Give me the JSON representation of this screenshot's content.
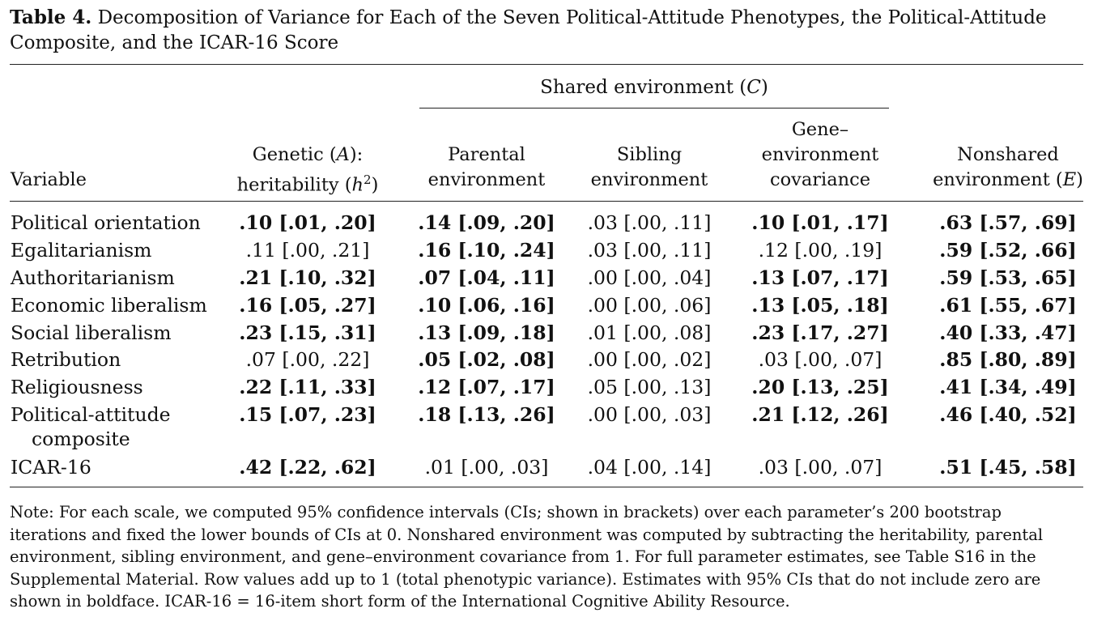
{
  "caption": {
    "label": "Table 4.",
    "text": "Decomposition of Variance for Each of the Seven Political-Attitude Phenotypes, the Political-Attitude Composite, and the ICAR-16 Score"
  },
  "header": {
    "spanner": "Shared environment (C)",
    "variable": "Variable",
    "genetic": [
      "Genetic (A):",
      "heritability (h²)"
    ],
    "parental": [
      "Parental",
      "environment"
    ],
    "sibling": [
      "Sibling",
      "environment"
    ],
    "covariance": [
      "Gene–",
      "environment",
      "covariance"
    ],
    "nonshared": [
      "Nonshared",
      "environment (E)"
    ]
  },
  "rows": [
    {
      "variable": [
        "Political orientation"
      ],
      "cells": [
        {
          "v": ".10 [.01, .20]",
          "bold": true
        },
        {
          "v": ".14 [.09, .20]",
          "bold": true
        },
        {
          "v": ".03 [.00, .11]",
          "bold": false
        },
        {
          "v": ".10 [.01, .17]",
          "bold": true
        },
        {
          "v": ".63 [.57, .69]",
          "bold": true
        }
      ]
    },
    {
      "variable": [
        "Egalitarianism"
      ],
      "cells": [
        {
          "v": ".11 [.00, .21]",
          "bold": false
        },
        {
          "v": ".16 [.10, .24]",
          "bold": true
        },
        {
          "v": ".03 [.00, .11]",
          "bold": false
        },
        {
          "v": ".12 [.00, .19]",
          "bold": false
        },
        {
          "v": ".59 [.52, .66]",
          "bold": true
        }
      ]
    },
    {
      "variable": [
        "Authoritarianism"
      ],
      "cells": [
        {
          "v": ".21 [.10, .32]",
          "bold": true
        },
        {
          "v": ".07 [.04, .11]",
          "bold": true
        },
        {
          "v": ".00 [.00, .04]",
          "bold": false
        },
        {
          "v": ".13 [.07, .17]",
          "bold": true
        },
        {
          "v": ".59 [.53, .65]",
          "bold": true
        }
      ]
    },
    {
      "variable": [
        "Economic liberalism"
      ],
      "cells": [
        {
          "v": ".16 [.05, .27]",
          "bold": true
        },
        {
          "v": ".10 [.06, .16]",
          "bold": true
        },
        {
          "v": ".00 [.00, .06]",
          "bold": false
        },
        {
          "v": ".13 [.05, .18]",
          "bold": true
        },
        {
          "v": ".61 [.55, .67]",
          "bold": true
        }
      ]
    },
    {
      "variable": [
        "Social liberalism"
      ],
      "cells": [
        {
          "v": ".23 [.15, .31]",
          "bold": true
        },
        {
          "v": ".13 [.09, .18]",
          "bold": true
        },
        {
          "v": ".01 [.00, .08]",
          "bold": false
        },
        {
          "v": ".23 [.17, .27]",
          "bold": true
        },
        {
          "v": ".40 [.33, .47]",
          "bold": true
        }
      ]
    },
    {
      "variable": [
        "Retribution"
      ],
      "cells": [
        {
          "v": ".07 [.00, .22]",
          "bold": false
        },
        {
          "v": ".05 [.02, .08]",
          "bold": true
        },
        {
          "v": ".00 [.00, .02]",
          "bold": false
        },
        {
          "v": ".03 [.00, .07]",
          "bold": false
        },
        {
          "v": ".85 [.80, .89]",
          "bold": true
        }
      ]
    },
    {
      "variable": [
        "Religiousness"
      ],
      "cells": [
        {
          "v": ".22 [.11, .33]",
          "bold": true
        },
        {
          "v": ".12 [.07, .17]",
          "bold": true
        },
        {
          "v": ".05 [.00, .13]",
          "bold": false
        },
        {
          "v": ".20 [.13, .25]",
          "bold": true
        },
        {
          "v": ".41 [.34, .49]",
          "bold": true
        }
      ]
    },
    {
      "variable": [
        "Political-attitude",
        "composite"
      ],
      "cells": [
        {
          "v": ".15 [.07, .23]",
          "bold": true
        },
        {
          "v": ".18 [.13, .26]",
          "bold": true
        },
        {
          "v": ".00 [.00, .03]",
          "bold": false
        },
        {
          "v": ".21 [.12, .26]",
          "bold": true
        },
        {
          "v": ".46 [.40, .52]",
          "bold": true
        }
      ]
    },
    {
      "variable": [
        "ICAR-16"
      ],
      "cells": [
        {
          "v": ".42 [.22, .62]",
          "bold": true
        },
        {
          "v": ".01 [.00, .03]",
          "bold": false
        },
        {
          "v": ".04 [.00, .14]",
          "bold": false
        },
        {
          "v": ".03 [.00, .07]",
          "bold": false
        },
        {
          "v": ".51 [.45, .58]",
          "bold": true
        }
      ]
    }
  ],
  "note": "Note: For each scale, we computed 95% confidence intervals (CIs; shown in brackets) over each parameter’s 200 bootstrap iterations and fixed the lower bounds of CIs at 0. Nonshared environment was computed by subtracting the heritability, parental environment, sibling environment, and gene–environment covariance from 1. For full parameter estimates, see Table S16 in the Supplemental Material. Row values add up to 1 (total phenotypic variance). Estimates with 95% CIs that do not include zero are shown in boldface. ICAR-16 = 16-item short form of the International Cognitive Ability Resource."
}
